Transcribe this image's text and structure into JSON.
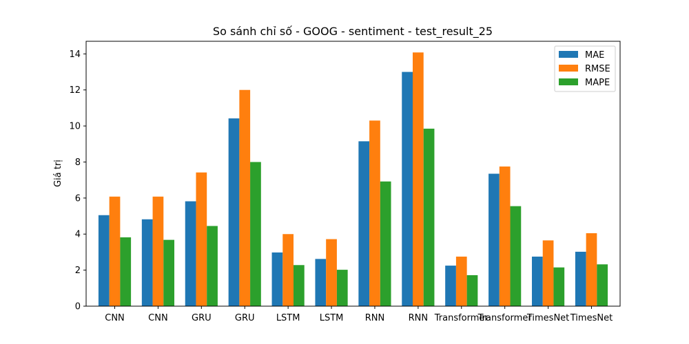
{
  "chart_data": {
    "type": "bar",
    "title": "So sánh chỉ số - GOOG - sentiment - test_result_25",
    "xlabel": "",
    "ylabel": "Giá trị",
    "ylim": [
      0,
      14.7
    ],
    "yticks": [
      0,
      2,
      4,
      6,
      8,
      10,
      12,
      14
    ],
    "categories": [
      "CNN",
      "CNN",
      "GRU",
      "GRU",
      "LSTM",
      "LSTM",
      "RNN",
      "RNN",
      "Transformer",
      "Transformer",
      "TimesNet",
      "TimesNet"
    ],
    "series": [
      {
        "name": "MAE",
        "color": "#1f77b4",
        "values": [
          5.05,
          4.82,
          5.82,
          10.42,
          2.98,
          2.62,
          9.15,
          13.0,
          2.25,
          7.35,
          2.75,
          3.02
        ]
      },
      {
        "name": "RMSE",
        "color": "#ff7f0e",
        "values": [
          6.08,
          6.08,
          7.42,
          12.0,
          4.0,
          3.72,
          10.3,
          14.08,
          2.75,
          7.75,
          3.65,
          4.05
        ]
      },
      {
        "name": "MAPE",
        "color": "#2ca02c",
        "values": [
          3.82,
          3.68,
          4.45,
          8.0,
          2.28,
          2.02,
          6.92,
          9.85,
          1.72,
          5.55,
          2.15,
          2.32
        ]
      }
    ],
    "grid": false,
    "legend": "top-right"
  }
}
